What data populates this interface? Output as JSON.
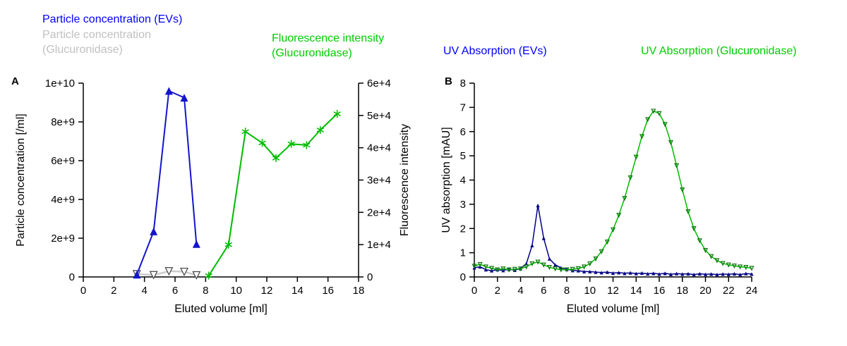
{
  "colors": {
    "legend_blue": "#0000FF",
    "legend_gray": "#C0C0C0",
    "legend_green": "#00CC00",
    "blue_line": "#1414CC",
    "navy": "#000085",
    "green_line": "#00BB00",
    "green_dark": "#147814",
    "gray_line": "#CCCCCC",
    "gray_marker": "#444444",
    "axis": "#000000",
    "background": "#FFFFFF"
  },
  "panels": {
    "a": {
      "label": "A",
      "legend": {
        "evs": "Particle concentration (EVs)",
        "gluc_line1": "Particle concentration",
        "gluc_line2": "(Glucuronidase)",
        "fluor_line1": "Fluorescence intensity",
        "fluor_line2": "(Glucuronidase)"
      }
    },
    "b": {
      "label": "B",
      "legend": {
        "evs": "UV Absorption (EVs)",
        "gluc": "UV Absorption (Glucuronidase)"
      }
    }
  },
  "chart_data": [
    {
      "id": "panel_a",
      "type": "line",
      "title": "",
      "xlabel": "Eluted volume [ml]",
      "ylabel_left": "Particle concentration [/ml]",
      "ylabel_right": "Fluorescence intensity",
      "xlim": [
        0,
        18
      ],
      "xticks": [
        0,
        2,
        4,
        6,
        8,
        10,
        12,
        14,
        16,
        18
      ],
      "ylim_left": [
        0,
        10000000000.0
      ],
      "yticks_left": [
        {
          "v": 0,
          "t": "0"
        },
        {
          "v": 2000000000.0,
          "t": "2e+9"
        },
        {
          "v": 4000000000.0,
          "t": "4e+9"
        },
        {
          "v": 6000000000.0,
          "t": "6e+9"
        },
        {
          "v": 8000000000.0,
          "t": "8e+9"
        },
        {
          "v": 10000000000.0,
          "t": "1e+10"
        }
      ],
      "ylim_right": [
        0,
        60000.0
      ],
      "yticks_right": [
        {
          "v": 0,
          "t": "0"
        },
        {
          "v": 10000.0,
          "t": "1e+4"
        },
        {
          "v": 20000.0,
          "t": "2e+4"
        },
        {
          "v": 30000.0,
          "t": "3e+4"
        },
        {
          "v": 40000.0,
          "t": "4e+4"
        },
        {
          "v": 50000.0,
          "t": "5e+4"
        },
        {
          "v": 60000.0,
          "t": "6e+4"
        }
      ],
      "grid": false,
      "legend_position": "top",
      "series": [
        {
          "name": "Particle concentration (Glucuronidase)",
          "axis": "left",
          "line_color": "gray_line",
          "line_width": 2.5,
          "marker": "triangle-down-open",
          "marker_color": "gray_marker",
          "marker_fill": "white",
          "marker_size": 5,
          "x": [
            3.5,
            4.6,
            5.6,
            6.6,
            7.4
          ],
          "y": [
            150000000.0,
            100000000.0,
            300000000.0,
            270000000.0,
            90000000.0
          ]
        },
        {
          "name": "Particle concentration (EVs)",
          "axis": "left",
          "line_color": "blue_line",
          "line_width": 2,
          "marker": "triangle-up",
          "marker_color": "blue_line",
          "marker_size": 5.5,
          "x": [
            3.5,
            4.6,
            5.6,
            6.6,
            7.4
          ],
          "y": [
            120000000.0,
            2350000000.0,
            9600000000.0,
            9250000000.0,
            1700000000.0
          ]
        },
        {
          "name": "Fluorescence intensity (Glucuronidase)",
          "axis": "right",
          "line_color": "green_line",
          "line_width": 2,
          "marker": "star",
          "marker_color": "green_line",
          "marker_size": 5,
          "x": [
            8.2,
            9.5,
            10.6,
            11.7,
            12.6,
            13.6,
            14.6,
            15.5,
            16.6
          ],
          "y": [
            400,
            10000,
            45000,
            41500,
            36800,
            41200,
            40800,
            45500,
            50500
          ]
        }
      ]
    },
    {
      "id": "panel_b",
      "type": "line",
      "title": "",
      "xlabel": "Eluted volume [ml]",
      "ylabel_left": "UV absorption [mAU]",
      "xlim": [
        0,
        24
      ],
      "xticks": [
        0,
        2,
        4,
        6,
        8,
        10,
        12,
        14,
        16,
        18,
        20,
        22,
        24
      ],
      "ylim_left": [
        0,
        8
      ],
      "yticks_left": [
        {
          "v": 0,
          "t": "0"
        },
        {
          "v": 1,
          "t": "1"
        },
        {
          "v": 2,
          "t": "2"
        },
        {
          "v": 3,
          "t": "3"
        },
        {
          "v": 4,
          "t": "4"
        },
        {
          "v": 5,
          "t": "5"
        },
        {
          "v": 6,
          "t": "6"
        },
        {
          "v": 7,
          "t": "7"
        },
        {
          "v": 8,
          "t": "8"
        }
      ],
      "grid": false,
      "legend_position": "top",
      "series": [
        {
          "name": "UV Absorption (EVs)",
          "axis": "left",
          "line_color": "navy",
          "line_width": 1.5,
          "marker": "triangle-up",
          "marker_color": "navy",
          "marker_size": 2.6,
          "x": [
            0,
            0.5,
            1,
            1.5,
            2,
            2.5,
            3,
            3.5,
            4,
            4.5,
            5,
            5.5,
            6,
            6.5,
            7,
            7.5,
            8,
            8.5,
            9,
            9.5,
            10,
            10.5,
            11,
            11.5,
            12,
            12.5,
            13,
            13.5,
            14,
            14.5,
            15,
            15.5,
            16,
            16.5,
            17,
            17.5,
            18,
            18.5,
            19,
            19.5,
            20,
            20.5,
            21,
            21.5,
            22,
            22.5,
            23,
            23.5,
            24
          ],
          "y": [
            0.38,
            0.42,
            0.3,
            0.26,
            0.3,
            0.27,
            0.32,
            0.28,
            0.35,
            0.55,
            1.3,
            2.95,
            1.6,
            0.75,
            0.5,
            0.38,
            0.32,
            0.27,
            0.26,
            0.22,
            0.22,
            0.2,
            0.18,
            0.2,
            0.16,
            0.18,
            0.15,
            0.17,
            0.14,
            0.16,
            0.13,
            0.15,
            0.12,
            0.15,
            0.11,
            0.14,
            0.12,
            0.13,
            0.1,
            0.13,
            0.11,
            0.12,
            0.1,
            0.12,
            0.11,
            0.13,
            0.1,
            0.14,
            0.12
          ]
        },
        {
          "name": "UV Absorption (Glucuronidase)",
          "axis": "left",
          "line_color": "green_line",
          "line_width": 1.5,
          "marker": "triangle-down-open",
          "marker_color": "green_dark",
          "marker_fill": "none",
          "marker_size": 2.6,
          "x": [
            0,
            0.5,
            1,
            1.5,
            2,
            2.5,
            3,
            3.5,
            4,
            4.5,
            5,
            5.5,
            6,
            6.5,
            7,
            7.5,
            8,
            8.5,
            9,
            9.5,
            10,
            10.5,
            11,
            11.5,
            12,
            12.5,
            13,
            13.5,
            14,
            14.5,
            15,
            15.5,
            16,
            16.5,
            17,
            17.5,
            18,
            18.5,
            19,
            19.5,
            20,
            20.5,
            21,
            21.5,
            22,
            22.5,
            23,
            23.5,
            24
          ],
          "y": [
            0.45,
            0.52,
            0.42,
            0.36,
            0.3,
            0.34,
            0.3,
            0.32,
            0.34,
            0.42,
            0.55,
            0.62,
            0.5,
            0.4,
            0.34,
            0.3,
            0.3,
            0.32,
            0.35,
            0.42,
            0.55,
            0.75,
            1.05,
            1.45,
            1.95,
            2.55,
            3.25,
            4.1,
            4.95,
            5.8,
            6.5,
            6.85,
            6.75,
            6.3,
            5.55,
            4.6,
            3.6,
            2.7,
            2.0,
            1.5,
            1.1,
            0.85,
            0.68,
            0.56,
            0.5,
            0.46,
            0.42,
            0.4,
            0.36
          ]
        }
      ]
    }
  ]
}
